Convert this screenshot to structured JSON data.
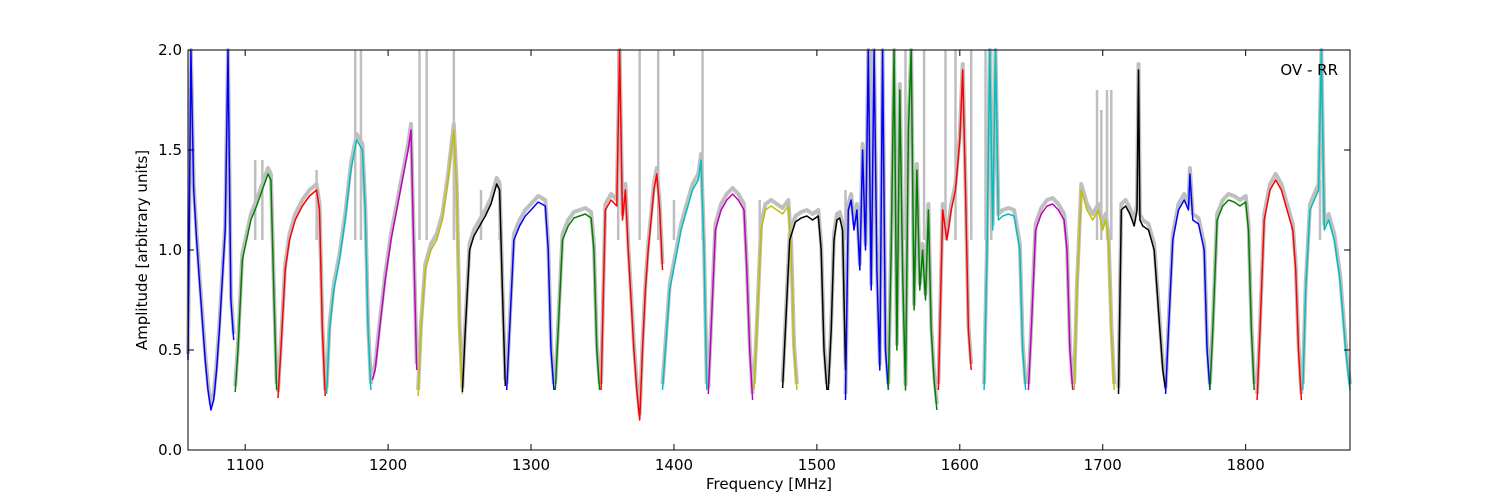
{
  "chart_data": {
    "type": "line",
    "title": "",
    "annotation": "OV - RR",
    "xlabel": "Frequency [MHz]",
    "ylabel": "Amplitude [arbitrary units]",
    "xlim": [
      1060,
      1873
    ],
    "ylim": [
      0.0,
      2.0
    ],
    "xticks": [
      1100,
      1200,
      1300,
      1400,
      1500,
      1600,
      1700,
      1800
    ],
    "yticks": [
      0.0,
      0.5,
      1.0,
      1.5,
      2.0
    ],
    "xtick_labels": [
      "1100",
      "1200",
      "1300",
      "1400",
      "1500",
      "1600",
      "1700",
      "1800"
    ],
    "ytick_labels": [
      "0.0",
      "0.5",
      "1.0",
      "1.5",
      "2.0"
    ],
    "grid": false,
    "background_envelope_color": "#bfbfbf",
    "colors": {
      "blue": "#0000ff",
      "green": "#008000",
      "red": "#ff0000",
      "cyan": "#00bfbf",
      "magenta": "#bf00bf",
      "yellow": "#bfbf00",
      "black": "#000000"
    },
    "series": [
      {
        "color": "blue",
        "x": [
          1060,
          1062,
          1064,
          1066,
          1068,
          1070,
          1072,
          1074,
          1076,
          1078,
          1080,
          1082,
          1084,
          1086,
          1088,
          1090,
          1092
        ],
        "y": [
          0.45,
          2.0,
          1.3,
          1.05,
          0.85,
          0.65,
          0.45,
          0.3,
          0.2,
          0.25,
          0.4,
          0.6,
          0.85,
          1.1,
          2.0,
          0.75,
          0.55
        ]
      },
      {
        "color": "green",
        "x": [
          1093,
          1095,
          1098,
          1101,
          1104,
          1108,
          1112,
          1116,
          1118,
          1120,
          1122
        ],
        "y": [
          0.29,
          0.5,
          0.95,
          1.05,
          1.15,
          1.22,
          1.3,
          1.38,
          1.35,
          0.8,
          0.3
        ]
      },
      {
        "color": "red",
        "x": [
          1123,
          1125,
          1128,
          1131,
          1135,
          1140,
          1145,
          1150,
          1152,
          1154,
          1156
        ],
        "y": [
          0.26,
          0.5,
          0.9,
          1.05,
          1.15,
          1.22,
          1.27,
          1.3,
          1.2,
          0.6,
          0.27
        ]
      },
      {
        "color": "cyan",
        "x": [
          1157,
          1159,
          1162,
          1166,
          1170,
          1174,
          1178,
          1182,
          1184,
          1186,
          1188
        ],
        "y": [
          0.28,
          0.6,
          0.8,
          0.95,
          1.15,
          1.4,
          1.55,
          1.5,
          1.2,
          0.6,
          0.3
        ]
      },
      {
        "color": "magenta",
        "x": [
          1189,
          1191,
          1194,
          1198,
          1202,
          1206,
          1210,
          1214,
          1216,
          1218,
          1220
        ],
        "y": [
          0.35,
          0.4,
          0.6,
          0.85,
          1.05,
          1.2,
          1.35,
          1.5,
          1.6,
          1.0,
          0.4
        ]
      },
      {
        "color": "yellow",
        "x": [
          1221,
          1223,
          1226,
          1230,
          1234,
          1238,
          1242,
          1246,
          1248,
          1250,
          1252
        ],
        "y": [
          0.27,
          0.6,
          0.9,
          1.0,
          1.05,
          1.15,
          1.35,
          1.6,
          1.3,
          0.6,
          0.28
        ]
      },
      {
        "color": "black",
        "x": [
          1252,
          1254,
          1257,
          1260,
          1264,
          1268,
          1272,
          1276,
          1278,
          1280,
          1282
        ],
        "y": [
          0.29,
          0.6,
          1.0,
          1.07,
          1.12,
          1.17,
          1.23,
          1.33,
          1.3,
          0.8,
          0.32
        ]
      },
      {
        "color": "blue",
        "x": [
          1283,
          1285,
          1288,
          1292,
          1296,
          1300,
          1305,
          1310,
          1312,
          1314,
          1316
        ],
        "y": [
          0.3,
          0.6,
          1.05,
          1.12,
          1.17,
          1.2,
          1.24,
          1.22,
          1.0,
          0.5,
          0.3
        ]
      },
      {
        "color": "green",
        "x": [
          1317,
          1319,
          1322,
          1326,
          1330,
          1334,
          1338,
          1342,
          1344,
          1346,
          1348
        ],
        "y": [
          0.3,
          0.6,
          1.05,
          1.12,
          1.16,
          1.17,
          1.18,
          1.16,
          1.0,
          0.5,
          0.3
        ]
      },
      {
        "color": "red",
        "x": [
          1349,
          1352,
          1356,
          1360,
          1362,
          1364,
          1366,
          1368,
          1370,
          1372,
          1374,
          1376,
          1378,
          1380,
          1382,
          1384,
          1386,
          1388,
          1390,
          1392
        ],
        "y": [
          0.3,
          1.2,
          1.25,
          1.22,
          2.0,
          1.15,
          1.3,
          1.0,
          0.75,
          0.5,
          0.3,
          0.15,
          0.5,
          0.8,
          1.0,
          1.15,
          1.3,
          1.38,
          1.2,
          0.9
        ]
      },
      {
        "color": "cyan",
        "x": [
          1392,
          1394,
          1397,
          1401,
          1405,
          1409,
          1413,
          1417,
          1419,
          1421,
          1423
        ],
        "y": [
          0.3,
          0.5,
          0.8,
          0.95,
          1.1,
          1.2,
          1.3,
          1.35,
          1.45,
          1.0,
          0.3
        ]
      },
      {
        "color": "magenta",
        "x": [
          1424,
          1426,
          1429,
          1433,
          1437,
          1441,
          1445,
          1449,
          1451,
          1453,
          1455
        ],
        "y": [
          0.28,
          0.6,
          1.1,
          1.2,
          1.25,
          1.28,
          1.25,
          1.2,
          0.9,
          0.5,
          0.25
        ]
      },
      {
        "color": "yellow",
        "x": [
          1456,
          1458,
          1461,
          1464,
          1468,
          1472,
          1476,
          1480,
          1482,
          1484,
          1486
        ],
        "y": [
          0.3,
          0.6,
          1.1,
          1.2,
          1.22,
          1.2,
          1.18,
          1.22,
          1.0,
          0.5,
          0.3
        ]
      },
      {
        "color": "black",
        "x": [
          1476,
          1478,
          1481,
          1485,
          1489,
          1493,
          1497,
          1501,
          1503,
          1505,
          1507
        ],
        "y": [
          0.31,
          0.6,
          1.05,
          1.14,
          1.16,
          1.17,
          1.15,
          1.17,
          1.0,
          0.5,
          0.3
        ]
      },
      {
        "color": "black",
        "x": [
          1508,
          1510,
          1512,
          1514,
          1516,
          1518,
          1520
        ],
        "y": [
          0.3,
          0.6,
          1.05,
          1.15,
          1.16,
          1.1,
          0.4
        ]
      },
      {
        "color": "blue",
        "x": [
          1520,
          1522,
          1524,
          1526,
          1528,
          1530,
          1532,
          1534,
          1536,
          1538,
          1540,
          1542,
          1544,
          1546,
          1548,
          1550
        ],
        "y": [
          0.25,
          1.2,
          1.25,
          1.1,
          1.2,
          0.9,
          1.5,
          1.0,
          2.0,
          0.8,
          2.0,
          0.9,
          0.4,
          2.0,
          0.5,
          0.3
        ]
      },
      {
        "color": "green",
        "x": [
          1550,
          1552,
          1554,
          1556,
          1558,
          1560,
          1562,
          1564,
          1566,
          1568,
          1570,
          1572,
          1574,
          1576,
          1578,
          1580,
          1582,
          1584
        ],
        "y": [
          0.3,
          1.0,
          2.0,
          0.5,
          1.8,
          0.9,
          0.3,
          1.6,
          2.0,
          0.7,
          1.4,
          0.8,
          1.0,
          0.75,
          1.2,
          0.6,
          0.35,
          0.2
        ]
      },
      {
        "color": "red",
        "x": [
          1585,
          1588,
          1591,
          1594,
          1597,
          1600,
          1602,
          1604,
          1606,
          1608
        ],
        "y": [
          0.3,
          1.2,
          1.05,
          1.2,
          1.3,
          1.55,
          1.9,
          1.3,
          0.6,
          0.4
        ]
      },
      {
        "color": "cyan",
        "x": [
          1617,
          1619,
          1621,
          1623,
          1625,
          1627,
          1630,
          1634,
          1638,
          1642,
          1644,
          1646
        ],
        "y": [
          0.3,
          1.0,
          2.0,
          1.1,
          2.0,
          1.15,
          1.17,
          1.18,
          1.17,
          1.0,
          0.5,
          0.3
        ]
      },
      {
        "color": "magenta",
        "x": [
          1648,
          1650,
          1653,
          1657,
          1661,
          1665,
          1669,
          1673,
          1675,
          1677,
          1679
        ],
        "y": [
          0.3,
          0.6,
          1.1,
          1.18,
          1.22,
          1.23,
          1.2,
          1.15,
          1.0,
          0.5,
          0.3
        ]
      },
      {
        "color": "yellow",
        "x": [
          1680,
          1682,
          1685,
          1689,
          1693,
          1697,
          1700,
          1702,
          1704,
          1706,
          1708
        ],
        "y": [
          0.3,
          0.8,
          1.3,
          1.2,
          1.15,
          1.2,
          1.1,
          1.15,
          1.05,
          0.6,
          0.3
        ]
      },
      {
        "color": "black",
        "x": [
          1711,
          1713,
          1716,
          1719,
          1722,
          1724,
          1725,
          1726,
          1728,
          1732,
          1736,
          1740,
          1742,
          1744
        ],
        "y": [
          0.28,
          1.2,
          1.22,
          1.18,
          1.12,
          1.2,
          1.9,
          1.15,
          1.12,
          1.1,
          1.0,
          0.6,
          0.4,
          0.3
        ]
      },
      {
        "color": "blue",
        "x": [
          1744,
          1746,
          1749,
          1753,
          1757,
          1760,
          1761,
          1763,
          1767,
          1771,
          1773,
          1775
        ],
        "y": [
          0.28,
          0.6,
          1.05,
          1.2,
          1.25,
          1.2,
          1.38,
          1.15,
          1.13,
          1.0,
          0.5,
          0.3
        ]
      },
      {
        "color": "green",
        "x": [
          1775,
          1777,
          1780,
          1784,
          1788,
          1792,
          1796,
          1800,
          1802,
          1804,
          1806
        ],
        "y": [
          0.3,
          0.6,
          1.15,
          1.22,
          1.25,
          1.24,
          1.22,
          1.24,
          1.1,
          0.6,
          0.3
        ]
      },
      {
        "color": "red",
        "x": [
          1808,
          1810,
          1813,
          1817,
          1821,
          1825,
          1829,
          1833,
          1835,
          1837,
          1839
        ],
        "y": [
          0.25,
          0.6,
          1.15,
          1.3,
          1.35,
          1.3,
          1.2,
          1.1,
          0.9,
          0.5,
          0.25
        ]
      },
      {
        "color": "cyan",
        "x": [
          1840,
          1842,
          1845,
          1848,
          1851,
          1853,
          1855,
          1858,
          1862,
          1866,
          1870,
          1873
        ],
        "y": [
          0.3,
          0.8,
          1.2,
          1.25,
          1.3,
          2.0,
          1.1,
          1.15,
          1.05,
          0.85,
          0.5,
          0.3
        ]
      }
    ],
    "background_spikes": [
      {
        "x": 1098,
        "y": 1.05
      },
      {
        "x": 1107,
        "y": 1.45
      },
      {
        "x": 1112,
        "y": 1.45
      },
      {
        "x": 1150,
        "y": 1.4
      },
      {
        "x": 1177,
        "y": 2.0
      },
      {
        "x": 1181,
        "y": 2.0
      },
      {
        "x": 1222,
        "y": 2.0
      },
      {
        "x": 1227,
        "y": 2.0
      },
      {
        "x": 1246,
        "y": 2.0
      },
      {
        "x": 1265,
        "y": 1.3
      },
      {
        "x": 1278,
        "y": 1.35
      },
      {
        "x": 1361,
        "y": 2.0
      },
      {
        "x": 1376,
        "y": 2.0
      },
      {
        "x": 1389,
        "y": 2.0
      },
      {
        "x": 1400,
        "y": 1.25
      },
      {
        "x": 1420,
        "y": 2.0
      },
      {
        "x": 1460,
        "y": 1.25
      },
      {
        "x": 1520,
        "y": 1.3
      },
      {
        "x": 1538,
        "y": 2.0
      },
      {
        "x": 1562,
        "y": 2.0
      },
      {
        "x": 1575,
        "y": 2.0
      },
      {
        "x": 1590,
        "y": 2.0
      },
      {
        "x": 1597,
        "y": 2.0
      },
      {
        "x": 1608,
        "y": 2.0
      },
      {
        "x": 1618,
        "y": 2.0
      },
      {
        "x": 1622,
        "y": 2.0
      },
      {
        "x": 1696,
        "y": 1.8
      },
      {
        "x": 1699,
        "y": 1.7
      },
      {
        "x": 1703,
        "y": 1.8
      },
      {
        "x": 1706,
        "y": 1.8
      },
      {
        "x": 1852,
        "y": 1.35
      }
    ]
  }
}
